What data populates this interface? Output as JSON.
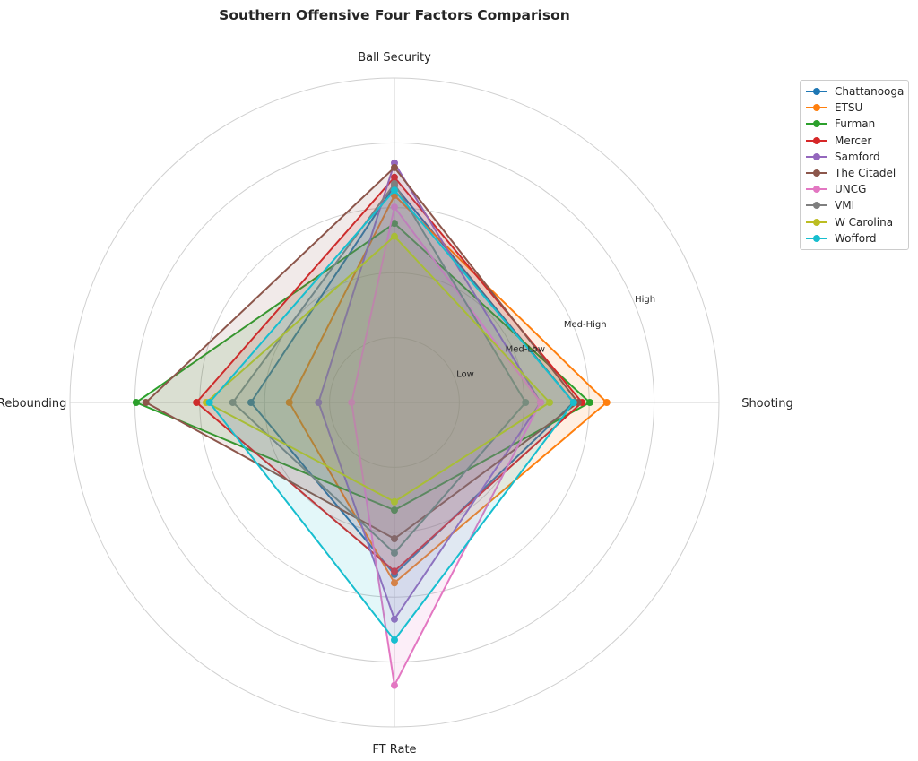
{
  "chart_data": {
    "type": "radar",
    "title": "Southern Offensive Four Factors Comparison",
    "axes": [
      "Ball Security",
      "Shooting",
      "FT Rate",
      "Off Rebounding"
    ],
    "rlim": [
      0,
      5
    ],
    "ring_values": [
      1,
      2,
      3,
      4,
      5
    ],
    "ring_labels": [
      {
        "value": 1,
        "label": "Low"
      },
      {
        "value": 2,
        "label": "Med-Low"
      },
      {
        "value": 3,
        "label": "Med-High"
      },
      {
        "value": 4,
        "label": "High"
      }
    ],
    "legend_position": "top-right",
    "series": [
      {
        "name": "Chattanooga",
        "color": "#1f77b4",
        "values": [
          3.34,
          2.76,
          2.65,
          2.21
        ]
      },
      {
        "name": "ETSU",
        "color": "#ff7f0e",
        "values": [
          3.19,
          3.27,
          2.78,
          1.62
        ]
      },
      {
        "name": "Furman",
        "color": "#2ca02c",
        "values": [
          2.76,
          3.01,
          1.66,
          3.98
        ]
      },
      {
        "name": "Mercer",
        "color": "#d62728",
        "values": [
          3.47,
          2.89,
          2.6,
          3.05
        ]
      },
      {
        "name": "Samford",
        "color": "#9467bd",
        "values": [
          3.69,
          2.25,
          3.34,
          1.17
        ]
      },
      {
        "name": "The Citadel",
        "color": "#8c564b",
        "values": [
          3.62,
          2.83,
          2.1,
          3.83
        ]
      },
      {
        "name": "UNCG",
        "color": "#e377c2",
        "values": [
          3.01,
          2.25,
          4.36,
          0.66
        ]
      },
      {
        "name": "VMI",
        "color": "#7f7f7f",
        "values": [
          3.37,
          2.02,
          2.32,
          2.49
        ]
      },
      {
        "name": "W Carolina",
        "color": "#bcbd22",
        "values": [
          2.56,
          2.39,
          1.53,
          2.9
        ]
      },
      {
        "name": "Wofford",
        "color": "#17becf",
        "values": [
          3.27,
          2.76,
          3.66,
          2.85
        ]
      }
    ]
  }
}
